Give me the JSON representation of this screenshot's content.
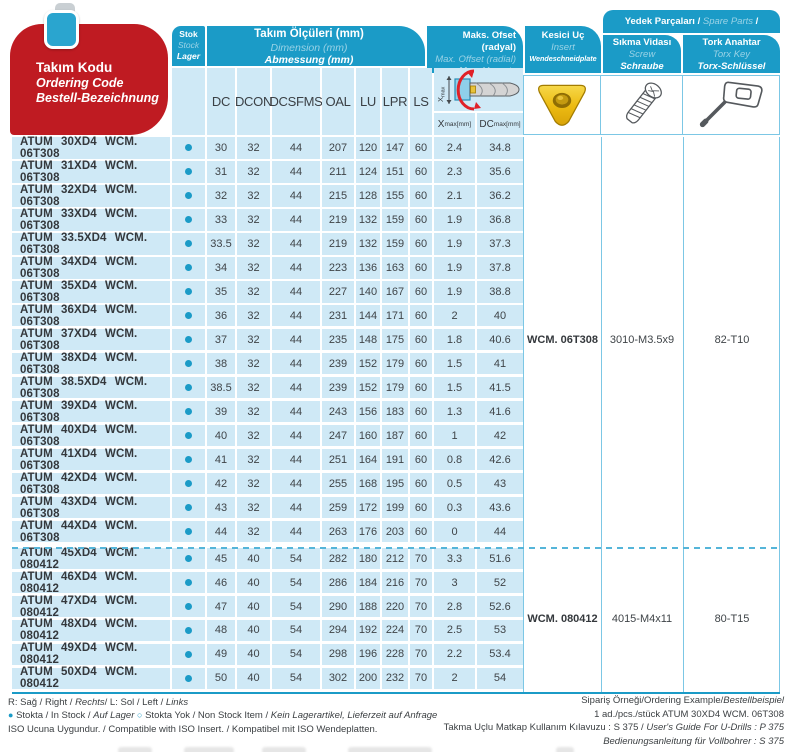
{
  "colors": {
    "teal": "#1b9bc7",
    "red": "#bf1b22",
    "row_blue": "#cfe9f6",
    "border_cyan": "#7cc7e5",
    "stock_dot": "#1b9bc7",
    "insert_yellow": "#edbc13"
  },
  "header": {
    "code_block": {
      "tr": "Takım Kodu",
      "en": "Ordering Code",
      "de": "Bestell-Bezeichnung"
    },
    "stock": {
      "tr": "Stok",
      "en": "Stock",
      "de": "Lager"
    },
    "dimensions": {
      "tr": "Takım Ölçüleri (mm)",
      "en": "Dimension (mm)",
      "de": "Abmessung (mm)"
    },
    "dim_columns": [
      "DC",
      "DCON",
      "DCSFMS",
      "OAL",
      "LU",
      "LPR",
      "LS"
    ],
    "offset": {
      "tr": "Maks. Ofset (radyal)",
      "en": "Max. Offset (radial)",
      "de": "Max. Versatz (radial)"
    },
    "offset_cols": [
      {
        "base": "X",
        "sub": "max",
        "unit": "[mm]"
      },
      {
        "base": "DC",
        "sub": "max",
        "unit": "[mm]"
      }
    ],
    "diagram_label": {
      "base": "X",
      "sub": "max"
    },
    "insert": {
      "tr": "Kesici Uç",
      "en": "Insert",
      "de": "Wendeschneidplate"
    },
    "spare": {
      "tr": "Yedek Parçaları",
      "sep": " / ",
      "en": "Spare Parts",
      "de": "Ersatzteile"
    },
    "screw": {
      "tr": "Sıkma Vidası",
      "en": "Screw",
      "de": "Schraube"
    },
    "torx": {
      "tr": "Tork Anahtar",
      "en": "Torx Key",
      "de": "Torx-Schlüssel"
    }
  },
  "table": {
    "rows": [
      {
        "code": "ATUM 30XD4 WCM. 06T308",
        "stock": true,
        "values": [
          "30",
          "32",
          "44",
          "207",
          "120",
          "147",
          "60",
          "2.4",
          "34.8"
        ]
      },
      {
        "code": "ATUM 31XD4 WCM. 06T308",
        "stock": true,
        "values": [
          "31",
          "32",
          "44",
          "211",
          "124",
          "151",
          "60",
          "2.3",
          "35.6"
        ]
      },
      {
        "code": "ATUM 32XD4 WCM. 06T308",
        "stock": true,
        "values": [
          "32",
          "32",
          "44",
          "215",
          "128",
          "155",
          "60",
          "2.1",
          "36.2"
        ]
      },
      {
        "code": "ATUM 33XD4 WCM. 06T308",
        "stock": true,
        "values": [
          "33",
          "32",
          "44",
          "219",
          "132",
          "159",
          "60",
          "1.9",
          "36.8"
        ]
      },
      {
        "code": "ATUM 33.5XD4 WCM. 06T308",
        "stock": true,
        "values": [
          "33.5",
          "32",
          "44",
          "219",
          "132",
          "159",
          "60",
          "1.9",
          "37.3"
        ]
      },
      {
        "code": "ATUM 34XD4 WCM. 06T308",
        "stock": true,
        "values": [
          "34",
          "32",
          "44",
          "223",
          "136",
          "163",
          "60",
          "1.9",
          "37.8"
        ]
      },
      {
        "code": "ATUM 35XD4 WCM. 06T308",
        "stock": true,
        "values": [
          "35",
          "32",
          "44",
          "227",
          "140",
          "167",
          "60",
          "1.9",
          "38.8"
        ]
      },
      {
        "code": "ATUM 36XD4 WCM. 06T308",
        "stock": true,
        "values": [
          "36",
          "32",
          "44",
          "231",
          "144",
          "171",
          "60",
          "2",
          "40"
        ]
      },
      {
        "code": "ATUM 37XD4 WCM. 06T308",
        "stock": true,
        "values": [
          "37",
          "32",
          "44",
          "235",
          "148",
          "175",
          "60",
          "1.8",
          "40.6"
        ]
      },
      {
        "code": "ATUM 38XD4 WCM. 06T308",
        "stock": true,
        "values": [
          "38",
          "32",
          "44",
          "239",
          "152",
          "179",
          "60",
          "1.5",
          "41"
        ]
      },
      {
        "code": "ATUM 38.5XD4 WCM. 06T308",
        "stock": true,
        "values": [
          "38.5",
          "32",
          "44",
          "239",
          "152",
          "179",
          "60",
          "1.5",
          "41.5"
        ]
      },
      {
        "code": "ATUM 39XD4 WCM. 06T308",
        "stock": true,
        "values": [
          "39",
          "32",
          "44",
          "243",
          "156",
          "183",
          "60",
          "1.3",
          "41.6"
        ]
      },
      {
        "code": "ATUM 40XD4 WCM. 06T308",
        "stock": true,
        "values": [
          "40",
          "32",
          "44",
          "247",
          "160",
          "187",
          "60",
          "1",
          "42"
        ]
      },
      {
        "code": "ATUM 41XD4 WCM. 06T308",
        "stock": true,
        "values": [
          "41",
          "32",
          "44",
          "251",
          "164",
          "191",
          "60",
          "0.8",
          "42.6"
        ]
      },
      {
        "code": "ATUM 42XD4 WCM. 06T308",
        "stock": true,
        "values": [
          "42",
          "32",
          "44",
          "255",
          "168",
          "195",
          "60",
          "0.5",
          "43"
        ]
      },
      {
        "code": "ATUM 43XD4 WCM. 06T308",
        "stock": true,
        "values": [
          "43",
          "32",
          "44",
          "259",
          "172",
          "199",
          "60",
          "0.3",
          "43.6"
        ]
      },
      {
        "code": "ATUM 44XD4 WCM. 06T308",
        "stock": true,
        "values": [
          "44",
          "32",
          "44",
          "263",
          "176",
          "203",
          "60",
          "0",
          "44"
        ]
      },
      {
        "code": "ATUM 45XD4 WCM. 080412",
        "stock": true,
        "values": [
          "45",
          "40",
          "54",
          "282",
          "180",
          "212",
          "70",
          "3.3",
          "51.6"
        ]
      },
      {
        "code": "ATUM 46XD4 WCM. 080412",
        "stock": true,
        "values": [
          "46",
          "40",
          "54",
          "286",
          "184",
          "216",
          "70",
          "3",
          "52"
        ]
      },
      {
        "code": "ATUM 47XD4 WCM. 080412",
        "stock": true,
        "values": [
          "47",
          "40",
          "54",
          "290",
          "188",
          "220",
          "70",
          "2.8",
          "52.6"
        ]
      },
      {
        "code": "ATUM 48XD4 WCM. 080412",
        "stock": true,
        "values": [
          "48",
          "40",
          "54",
          "294",
          "192",
          "224",
          "70",
          "2.5",
          "53"
        ]
      },
      {
        "code": "ATUM 49XD4 WCM. 080412",
        "stock": true,
        "values": [
          "49",
          "40",
          "54",
          "298",
          "196",
          "228",
          "70",
          "2.2",
          "53.4"
        ]
      },
      {
        "code": "ATUM 50XD4 WCM. 080412",
        "stock": true,
        "values": [
          "50",
          "40",
          "54",
          "302",
          "200",
          "232",
          "70",
          "2",
          "54"
        ]
      }
    ],
    "groups": [
      {
        "row_span": 17,
        "insert": "WCM. 06T308",
        "screw": "3010-M3.5x9",
        "torx": "82-T10"
      },
      {
        "row_span": 6,
        "insert": "WCM. 080412",
        "screw": "4015-M4x11",
        "torx": "80-T15"
      }
    ]
  },
  "footer": {
    "left_lines": [
      [
        {
          "t": "R: Sağ / Right / "
        },
        {
          "t": "Rechts",
          "i": true
        },
        {
          "t": "/   L: Sol / Left / "
        },
        {
          "t": "Links",
          "i": true
        }
      ],
      [
        {
          "t": "●",
          "c": "dotf"
        },
        {
          "t": " Stokta / In Stock / "
        },
        {
          "t": "Auf Lager",
          "i": true
        },
        {
          "t": "   "
        },
        {
          "t": "○",
          "c": "doth"
        },
        {
          "t": " Stokta Yok / Non Stock Item / "
        },
        {
          "t": "Kein Lagerartikel, Lieferzeit auf Anfrage",
          "i": true
        }
      ],
      [
        {
          "t": "ISO Ucuna Uygundur. / Compatible with ISO Insert. / Kompatibel mit ISO Wendeplatten."
        }
      ]
    ],
    "right_lines": [
      [
        {
          "t": "Sipariş Örneği/Ordering Example/"
        },
        {
          "t": "Bestellbeispiel",
          "i": true
        }
      ],
      [
        {
          "t": "1 ad./pcs./stück ATUM 30XD4 WCM. 06T308"
        }
      ],
      [
        {
          "t": "Takma Uçlu Matkap Kullanım Kılavuzu : S 375 / "
        },
        {
          "t": "User's Guide For U-Drills : P 375",
          "i": true
        }
      ],
      [
        {
          "t": "Bedienungsanleitung für Vollbohrer : S 375",
          "i": true
        }
      ]
    ]
  }
}
